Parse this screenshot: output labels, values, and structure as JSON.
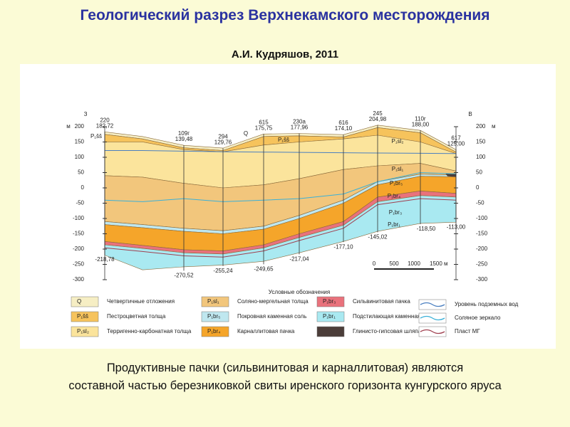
{
  "title": "Геологический разрез Верхнекамского месторождения",
  "author": "А.И. Кудряшов, 2011",
  "section": {
    "left_label": "З",
    "right_label": "В",
    "unit": "м",
    "depth_ticks": [
      200,
      150,
      100,
      50,
      0,
      -50,
      -100,
      -150,
      -200,
      -250,
      -300
    ],
    "wells": [
      {
        "name": "220",
        "top": "182,72",
        "bottom": "-218,78"
      },
      {
        "name": "109г",
        "top": "139,48",
        "bottom": "-270,52"
      },
      {
        "name": "294",
        "top": "129,76",
        "bottom": "-255,24"
      },
      {
        "name": "615",
        "top": "175,75",
        "bottom": "-249,65"
      },
      {
        "name": "230а",
        "top": "177,96",
        "bottom": "-217,04"
      },
      {
        "name": "616",
        "top": "174,10",
        "bottom": "-177,10"
      },
      {
        "name": "245",
        "top": "204,98",
        "bottom": "-145,02"
      },
      {
        "name": "110г",
        "top": "188,00",
        "bottom": "-118,50"
      },
      {
        "name": "617",
        "top": "125,00",
        "bottom": "-113,00"
      }
    ],
    "layer_labels": [
      "P₁šš",
      "Q",
      "P₁šš",
      "P₁sl₂",
      "P₁sl₁",
      "P₁br₅",
      "P₁br₄",
      "P₁br₃",
      "P₁br₁"
    ],
    "scale": [
      "0",
      "500",
      "1000",
      "1500 м"
    ]
  },
  "legend": {
    "title": "Условные обозначения",
    "items": [
      {
        "symbol": "Q",
        "label": "Четвертичные отложения",
        "color": "#f6eec4"
      },
      {
        "symbol": "P₁šš",
        "label": "Пестроцветная толща",
        "color": "#f6c35c"
      },
      {
        "symbol": "P₁sl₂",
        "label": "Терригенно-карбонатная толща",
        "color": "#fbe49c"
      },
      {
        "symbol": "P₁sl₁",
        "label": "Соляно-мергельная толща",
        "color": "#f2c67c"
      },
      {
        "symbol": "P₁br₅",
        "label": "Покровная каменная соль",
        "color": "#bfe7ef"
      },
      {
        "symbol": "P₁br₄",
        "label": "Карналлитовая пачка",
        "color": "#f5a52a"
      },
      {
        "symbol": "P₁br₃",
        "label": "Сильвинитовая пачка",
        "color": "#e9727c"
      },
      {
        "symbol": "P₁br₁",
        "label": "Подстилающая каменная соль",
        "color": "#a9e9f1"
      },
      {
        "label": "Глинисто-гипсовая шляпа",
        "color": "#4b3d39"
      }
    ],
    "lines": [
      {
        "label": "Уровень подземных вод",
        "color": "#4a7fc0"
      },
      {
        "label": "Соляное зеркало",
        "color": "#3ab0d8"
      },
      {
        "label": "Пласт МГ",
        "color": "#a04050"
      }
    ]
  },
  "caption": [
    "Продуктивные пачки (сильвинитовая и карналлитовая) являются",
    "составной частью березниковкой свиты иренского горизонта кунгурского яруса"
  ]
}
